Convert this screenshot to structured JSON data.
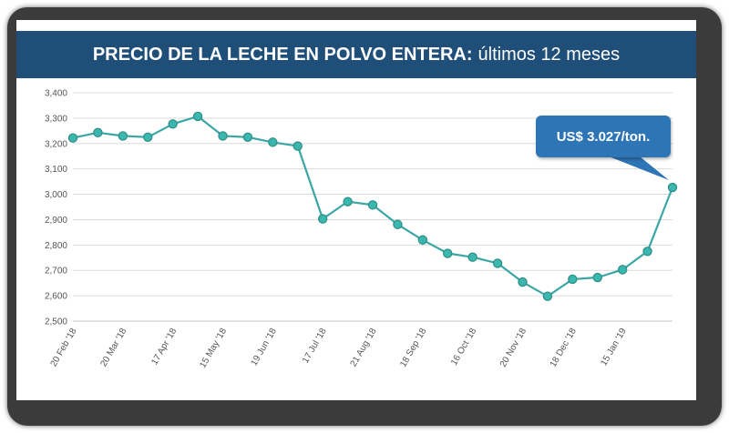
{
  "header": {
    "title_bold": "PRECIO DE LA LECHE EN POLVO ENTERA:",
    "title_light": "últimos 12 meses"
  },
  "callout": {
    "text": "US$ 3.027/ton."
  },
  "colors": {
    "header_bg": "#1f4e79",
    "line": "#3aa6a6",
    "marker_fill": "#3ab7ae",
    "callout_bg": "#2e75b6"
  },
  "chart_data": {
    "type": "line",
    "title": "PRECIO DE LA LECHE EN POLVO ENTERA: últimos 12 meses",
    "xlabel": "",
    "ylabel": "",
    "ylim": [
      2500,
      3400
    ],
    "yticks": [
      2500,
      2600,
      2700,
      2800,
      2900,
      3000,
      3100,
      3200,
      3300,
      3400
    ],
    "ytick_labels": [
      "2,500",
      "2,600",
      "2,700",
      "2,800",
      "2,900",
      "3,000",
      "3,100",
      "3,200",
      "3,300",
      "3,400"
    ],
    "x_tick_labels": [
      "20 Feb '18",
      "20 Mar '18",
      "17 Apr '18",
      "15 May '18",
      "19 Jun '18",
      "17 Jul '18",
      "21 Aug '18",
      "18 Sep '18",
      "16 Oct '18",
      "20 Nov '18",
      "18 Dec '18",
      "15 Jan '19"
    ],
    "grid": true,
    "series": [
      {
        "values": [
          3222,
          3243,
          3230,
          3225,
          3277,
          3307,
          3230,
          3225,
          3205,
          3190,
          2903,
          2971,
          2958,
          2881,
          2820,
          2767,
          2752,
          2728,
          2654,
          2598,
          2665,
          2672,
          2703,
          2775,
          3027
        ]
      }
    ]
  }
}
